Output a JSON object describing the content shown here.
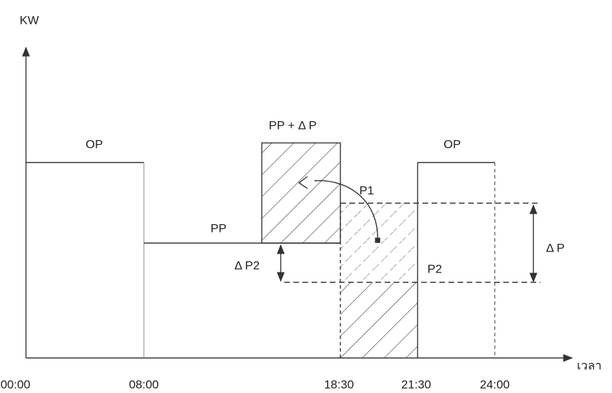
{
  "axes": {
    "y_label": "KW",
    "x_label": "เวลา"
  },
  "time_labels": [
    "00:00",
    "08:00",
    "18:30",
    "21:30",
    "24:00"
  ],
  "regions": {
    "op_left": "OP",
    "pp": "PP",
    "peak": "PP + Δ P",
    "op_right": "OP",
    "p1": "P1",
    "p2": "P2",
    "delta_p2": "Δ P2",
    "delta_p": "Δ P"
  }
}
